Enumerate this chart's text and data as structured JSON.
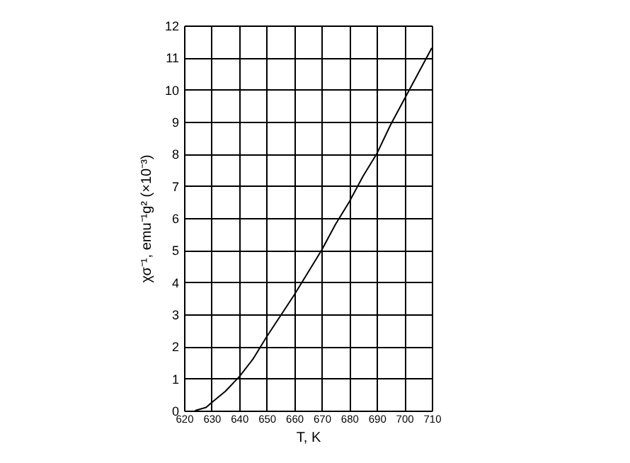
{
  "chart_data": {
    "type": "line",
    "xlabel": "T, K",
    "ylabel": "χσ⁻¹, emu⁻¹g² (×10⁻³)",
    "x": [
      624,
      628,
      630,
      635,
      640,
      645,
      650,
      655,
      660,
      665,
      670,
      675,
      680,
      685,
      690,
      695,
      700,
      705,
      710
    ],
    "series": [
      {
        "color": "#000000",
        "values": [
          0,
          0.1,
          0.25,
          0.6,
          1.05,
          1.6,
          2.3,
          2.95,
          3.6,
          4.3,
          5.0,
          5.8,
          6.5,
          7.3,
          8.0,
          8.9,
          9.7,
          10.5,
          11.3
        ]
      }
    ],
    "xlim": [
      620,
      710
    ],
    "xticks": [
      620,
      630,
      640,
      650,
      660,
      670,
      680,
      690,
      700,
      710
    ],
    "ylim": [
      0,
      12
    ],
    "yticks": [
      0,
      1,
      2,
      3,
      4,
      5,
      6,
      7,
      8,
      9,
      10,
      11,
      12
    ],
    "grid": true,
    "marker": "none",
    "line_style": "solid"
  }
}
